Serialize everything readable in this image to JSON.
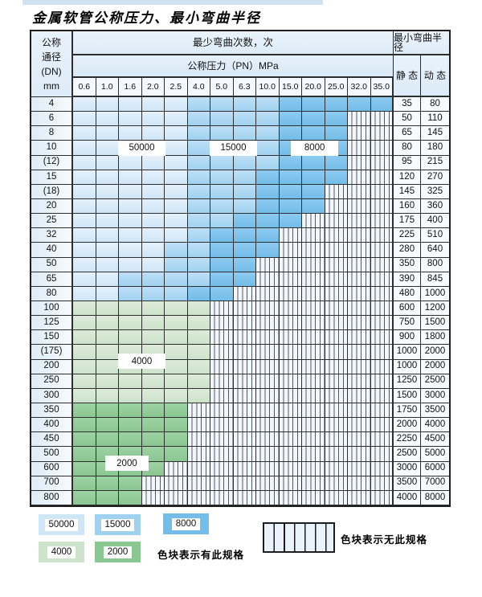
{
  "title": "金属软管公称压力、最小弯曲半径",
  "header": {
    "dn_lines": [
      "公称",
      "通径",
      "(DN)",
      "mm"
    ],
    "bend_times": "最少弯曲次数，次",
    "pressure": "公称压力（PN）MPa",
    "radius": "最小弯曲半径",
    "static": "静 态",
    "dynamic": "动 态"
  },
  "chart_data": {
    "type": "heatmap",
    "title": "金属软管公称压力、最小弯曲半径",
    "x_axis_label": "公称压力（PN）MPa",
    "x_ticks": [
      "0.6",
      "1.0",
      "1.6",
      "2.0",
      "2.5",
      "4.0",
      "5.0",
      "6.3",
      "10.0",
      "15.0",
      "20.0",
      "25.0",
      "32.0",
      "35.0"
    ],
    "y_axis_label": "公称通径(DN) mm",
    "cell_code_meaning": {
      "a": "50000次",
      "b": "15000次",
      "c": "8000次",
      "d": "4000次",
      "e": "2000次",
      "x": "无此规格"
    },
    "rows": [
      {
        "dn": "4",
        "cells": "aaaaabbbbccccc",
        "static": "35",
        "dynamic": "80"
      },
      {
        "dn": "6",
        "cells": "aaaaabbbbcccxx",
        "static": "50",
        "dynamic": "110"
      },
      {
        "dn": "8",
        "cells": "aaaaabbbbcccxx",
        "static": "65",
        "dynamic": "145"
      },
      {
        "dn": "10",
        "cells": "aaaaabbbbcccxx",
        "static": "80",
        "dynamic": "180"
      },
      {
        "dn": "(12)",
        "cells": "aaaaabbbbcccxx",
        "static": "95",
        "dynamic": "215"
      },
      {
        "dn": "15",
        "cells": "aaaaabbbccccxx",
        "static": "120",
        "dynamic": "270"
      },
      {
        "dn": "(18)",
        "cells": "aaaaabbbcccxxx",
        "static": "145",
        "dynamic": "325"
      },
      {
        "dn": "20",
        "cells": "aaaaabbbcccxxx",
        "static": "160",
        "dynamic": "360"
      },
      {
        "dn": "25",
        "cells": "aaaaabbcccxxxx",
        "static": "175",
        "dynamic": "400"
      },
      {
        "dn": "32",
        "cells": "aaaaabcccxxxxx",
        "static": "225",
        "dynamic": "510"
      },
      {
        "dn": "40",
        "cells": "aaaabbcccxxxxx",
        "static": "280",
        "dynamic": "640"
      },
      {
        "dn": "50",
        "cells": "aaaabbccxxxxxx",
        "static": "350",
        "dynamic": "800"
      },
      {
        "dn": "65",
        "cells": "aabbbbccxxxxxx",
        "static": "390",
        "dynamic": "845"
      },
      {
        "dn": "80",
        "cells": "aabbbccxxxxxxx",
        "static": "480",
        "dynamic": "1000"
      },
      {
        "dn": "100",
        "cells": "ddddddxxxxxxxx",
        "static": "600",
        "dynamic": "1200"
      },
      {
        "dn": "125",
        "cells": "ddddddxxxxxxxx",
        "static": "750",
        "dynamic": "1500"
      },
      {
        "dn": "150",
        "cells": "ddddddxxxxxxxx",
        "static": "900",
        "dynamic": "1800"
      },
      {
        "dn": "(175)",
        "cells": "ddddddxxxxxxxx",
        "static": "1000",
        "dynamic": "2000"
      },
      {
        "dn": "200",
        "cells": "ddddddxxxxxxxx",
        "static": "1000",
        "dynamic": "2000"
      },
      {
        "dn": "250",
        "cells": "ddddddxxxxxxxx",
        "static": "1250",
        "dynamic": "2500"
      },
      {
        "dn": "300",
        "cells": "ddddddxxxxxxxx",
        "static": "1500",
        "dynamic": "3000"
      },
      {
        "dn": "350",
        "cells": "eeeeexxxxxxxxx",
        "static": "1750",
        "dynamic": "3500"
      },
      {
        "dn": "400",
        "cells": "eeeeexxxxxxxxx",
        "static": "2000",
        "dynamic": "4000"
      },
      {
        "dn": "450",
        "cells": "eeeeexxxxxxxxx",
        "static": "2250",
        "dynamic": "4500"
      },
      {
        "dn": "500",
        "cells": "eeeeexxxxxxxxx",
        "static": "2500",
        "dynamic": "5000"
      },
      {
        "dn": "600",
        "cells": "eeeexxxxxxxxxx",
        "static": "3000",
        "dynamic": "6000"
      },
      {
        "dn": "700",
        "cells": "eeexxxxxxxxxxx",
        "static": "3500",
        "dynamic": "7000"
      },
      {
        "dn": "800",
        "cells": "eeexxxxxxxxxxx",
        "static": "4000",
        "dynamic": "8000"
      }
    ],
    "overlay_labels": [
      {
        "text": "50000",
        "row_index": 3,
        "col": 2,
        "span": 2,
        "dy": 0
      },
      {
        "text": "15000",
        "row_index": 3,
        "col": 6,
        "span": 2,
        "dy": 0
      },
      {
        "text": "8000",
        "row_index": 3,
        "col": 9.55,
        "span": 2,
        "dy": 0
      },
      {
        "text": "4000",
        "row_index": 18,
        "col": 2,
        "span": 2,
        "dy": -7
      },
      {
        "text": "2000",
        "row_index": 25,
        "col": 1.45,
        "span": 1.8,
        "dy": -7
      }
    ],
    "legend_position": "bottom"
  },
  "legend": {
    "chips": [
      {
        "label": "50000",
        "color": "#cfe6f7"
      },
      {
        "label": "15000",
        "color": "#a0d2f0"
      },
      {
        "label": "8000",
        "color": "#72bde9"
      },
      {
        "label": "4000",
        "color": "#cde3cb"
      },
      {
        "label": "2000",
        "color": "#8ac791"
      }
    ],
    "has_spec_text": "色块表示有此规格",
    "no_spec_text": "色块表示无此规格"
  },
  "colors": {
    "band_50000": "#cfe6f7",
    "band_15000": "#a0d2f0",
    "band_8000": "#72bde9",
    "band_4000": "#cde3cb",
    "band_2000": "#8ac791",
    "grid_line": "#2e2e2e",
    "header_bg": "#e2eef9",
    "striped_bg": "#f1f7fd"
  }
}
